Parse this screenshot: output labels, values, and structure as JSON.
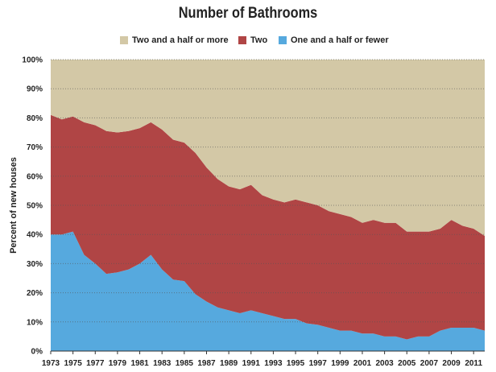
{
  "chart_data": {
    "type": "area",
    "title": "Number of Bathrooms",
    "ylabel": "Percent of new houses",
    "xlabel": "",
    "ylim": [
      0,
      100
    ],
    "y_ticks": [
      "0%",
      "10%",
      "20%",
      "30%",
      "40%",
      "50%",
      "60%",
      "70%",
      "80%",
      "90%",
      "100%"
    ],
    "x_tick_labels": [
      "1973",
      "1975",
      "1977",
      "1979",
      "1981",
      "1983",
      "1985",
      "1987",
      "1989",
      "1991",
      "1993",
      "1995",
      "1997",
      "1999",
      "2001",
      "2003",
      "2005",
      "2007",
      "2009",
      "2011"
    ],
    "x": [
      1973,
      1974,
      1975,
      1976,
      1977,
      1978,
      1979,
      1980,
      1981,
      1982,
      1983,
      1984,
      1985,
      1986,
      1987,
      1988,
      1989,
      1990,
      1991,
      1992,
      1993,
      1994,
      1995,
      1996,
      1997,
      1998,
      1999,
      2000,
      2001,
      2002,
      2003,
      2004,
      2005,
      2006,
      2007,
      2008,
      2009,
      2010,
      2011,
      2012
    ],
    "stacking": "stacked to 100%",
    "grid": true,
    "legend_position": "top",
    "series": [
      {
        "name": "One and a half or fewer",
        "color": "#56a9de",
        "values": [
          40,
          40,
          41,
          33,
          30,
          26.5,
          27,
          28,
          30,
          33,
          28,
          24.5,
          24,
          19.5,
          17,
          15,
          14,
          13,
          14,
          13,
          12,
          11,
          11,
          9.5,
          9,
          8,
          7,
          7,
          6,
          6,
          5,
          5,
          4,
          5,
          5,
          7,
          8,
          8,
          8,
          7
        ]
      },
      {
        "name": "Two",
        "color": "#b04545",
        "values": [
          41,
          39.5,
          39.5,
          45.5,
          47.5,
          49,
          48,
          47.5,
          46.5,
          45.5,
          48,
          48,
          47.5,
          48.5,
          46,
          44,
          42.5,
          42.5,
          43,
          40.5,
          40,
          40,
          41,
          41.5,
          41,
          40,
          40,
          39,
          38,
          39,
          39,
          39,
          37,
          36,
          36,
          35,
          37,
          35,
          34,
          32.5
        ]
      },
      {
        "name": "Two and a half or more",
        "color": "#d3c8a6",
        "values": [
          19,
          20.5,
          19.5,
          21.5,
          22.5,
          24.5,
          25,
          24.5,
          23.5,
          21.5,
          24,
          27.5,
          28.5,
          32,
          37,
          41,
          43.5,
          44.5,
          43,
          46.5,
          48,
          49,
          48,
          49,
          50,
          52,
          53,
          54,
          56,
          55,
          56,
          56,
          59,
          59,
          59,
          58,
          55,
          57,
          58,
          60.5
        ]
      }
    ]
  }
}
